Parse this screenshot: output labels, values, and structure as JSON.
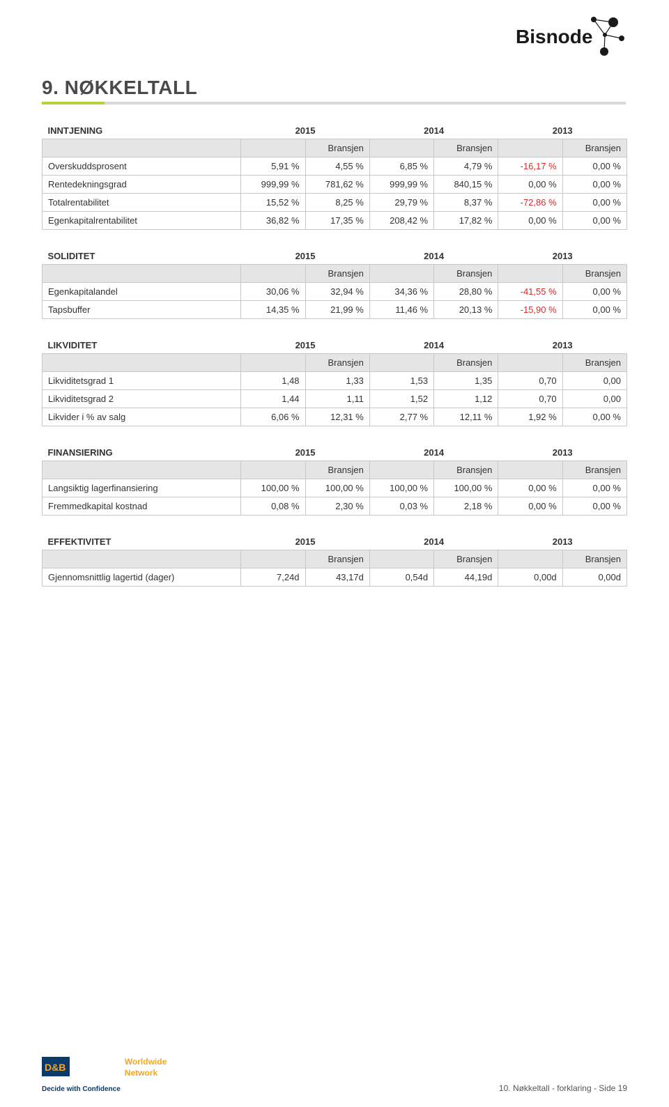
{
  "brand": {
    "name": "Bisnode",
    "color": "#1a1a1a"
  },
  "title": "9. NØKKELTALL",
  "accent_green": "#b5d334",
  "accent_gray": "#d9d9d9",
  "neg_color": "#d62c2c",
  "header_bg": "#e5e5e5",
  "bransjen_label": "Bransjen",
  "years": [
    "2015",
    "2014",
    "2013"
  ],
  "sections": [
    {
      "name": "INNTJENING",
      "rows": [
        {
          "label": "Overskuddsprosent",
          "vals": [
            "5,91 %",
            "4,55 %",
            "6,85 %",
            "4,79 %",
            "-16,17 %",
            "0,00 %"
          ]
        },
        {
          "label": "Rentedekningsgrad",
          "vals": [
            "999,99 %",
            "781,62 %",
            "999,99 %",
            "840,15 %",
            "0,00 %",
            "0,00 %"
          ]
        },
        {
          "label": "Totalrentabilitet",
          "vals": [
            "15,52 %",
            "8,25 %",
            "29,79 %",
            "8,37 %",
            "-72,86 %",
            "0,00 %"
          ]
        },
        {
          "label": "Egenkapitalrentabilitet",
          "vals": [
            "36,82 %",
            "17,35 %",
            "208,42 %",
            "17,82 %",
            "0,00 %",
            "0,00 %"
          ]
        }
      ]
    },
    {
      "name": "SOLIDITET",
      "rows": [
        {
          "label": "Egenkapitalandel",
          "vals": [
            "30,06 %",
            "32,94 %",
            "34,36 %",
            "28,80 %",
            "-41,55 %",
            "0,00 %"
          ]
        },
        {
          "label": "Tapsbuffer",
          "vals": [
            "14,35 %",
            "21,99 %",
            "11,46 %",
            "20,13 %",
            "-15,90 %",
            "0,00 %"
          ]
        }
      ]
    },
    {
      "name": "LIKVIDITET",
      "rows": [
        {
          "label": "Likviditetsgrad 1",
          "vals": [
            "1,48",
            "1,33",
            "1,53",
            "1,35",
            "0,70",
            "0,00"
          ]
        },
        {
          "label": "Likviditetsgrad 2",
          "vals": [
            "1,44",
            "1,11",
            "1,52",
            "1,12",
            "0,70",
            "0,00"
          ]
        },
        {
          "label": "Likvider i % av salg",
          "vals": [
            "6,06 %",
            "12,31 %",
            "2,77 %",
            "12,11 %",
            "1,92 %",
            "0,00 %"
          ]
        }
      ]
    },
    {
      "name": "FINANSIERING",
      "rows": [
        {
          "label": "Langsiktig lagerfinansiering",
          "vals": [
            "100,00 %",
            "100,00 %",
            "100,00 %",
            "100,00 %",
            "0,00 %",
            "0,00 %"
          ]
        },
        {
          "label": "Fremmedkapital kostnad",
          "vals": [
            "0,08 %",
            "2,30 %",
            "0,03 %",
            "2,18 %",
            "0,00 %",
            "0,00 %"
          ]
        }
      ]
    },
    {
      "name": "EFFEKTIVITET",
      "rows": [
        {
          "label": "Gjennomsnittlig lagertid (dager)",
          "vals": [
            "7,24d",
            "43,17d",
            "0,54d",
            "44,19d",
            "0,00d",
            "0,00d"
          ]
        }
      ]
    }
  ],
  "footer": {
    "worldwide": "Worldwide",
    "network": "Network",
    "decide": "Decide with Confidence",
    "db": "D&B",
    "right": "10. Nøkkeltall - forklaring - Side 19"
  }
}
